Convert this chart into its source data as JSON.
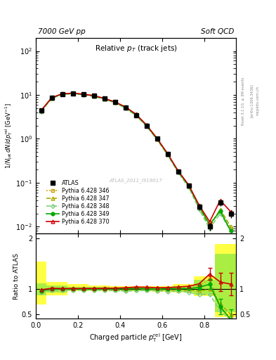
{
  "title_left": "7000 GeV pp",
  "title_right": "Soft QCD",
  "main_title": "Relative $p_T$ (track jets)",
  "xlabel": "Charged particle $p_{\\mathrm{T}}^{\\mathrm{rel}}$ [GeV]",
  "ylabel_main": "$1/N_{\\mathrm{jet}}\\,dN/dp_{\\mathrm{T}}^{\\mathrm{rel}}$ [GeV$^{-1}$]",
  "ylabel_ratio": "Ratio to ATLAS",
  "watermark": "ATLAS_2011_I919017",
  "x_data": [
    0.025,
    0.075,
    0.125,
    0.175,
    0.225,
    0.275,
    0.325,
    0.375,
    0.425,
    0.475,
    0.525,
    0.575,
    0.625,
    0.675,
    0.725,
    0.775,
    0.825,
    0.875,
    0.925
  ],
  "atlas_y": [
    4.5,
    8.5,
    10.5,
    10.8,
    10.3,
    9.5,
    8.2,
    6.8,
    5.2,
    3.5,
    2.0,
    1.0,
    0.45,
    0.18,
    0.085,
    0.028,
    0.01,
    0.035,
    0.02
  ],
  "atlas_yerr": [
    0.3,
    0.4,
    0.5,
    0.5,
    0.5,
    0.45,
    0.4,
    0.35,
    0.28,
    0.2,
    0.12,
    0.06,
    0.03,
    0.015,
    0.008,
    0.004,
    0.002,
    0.005,
    0.004
  ],
  "py346_y": [
    4.4,
    8.6,
    10.6,
    10.9,
    10.4,
    9.6,
    8.3,
    6.9,
    5.3,
    3.6,
    2.05,
    1.02,
    0.46,
    0.185,
    0.088,
    0.03,
    0.012,
    0.022,
    0.009
  ],
  "py347_y": [
    4.3,
    8.4,
    10.4,
    10.7,
    10.2,
    9.4,
    8.1,
    6.7,
    5.1,
    3.45,
    1.98,
    0.98,
    0.44,
    0.177,
    0.083,
    0.027,
    0.01,
    0.025,
    0.01
  ],
  "py348_y": [
    4.2,
    8.3,
    10.3,
    10.6,
    10.1,
    9.3,
    8.0,
    6.6,
    5.0,
    3.4,
    1.95,
    0.97,
    0.43,
    0.173,
    0.08,
    0.025,
    0.009,
    0.02,
    0.008
  ],
  "py349_y": [
    4.35,
    8.55,
    10.55,
    10.85,
    10.35,
    9.55,
    8.25,
    6.85,
    5.25,
    3.55,
    2.02,
    1.0,
    0.455,
    0.182,
    0.086,
    0.029,
    0.011,
    0.023,
    0.008
  ],
  "py370_y": [
    4.45,
    8.65,
    10.65,
    10.95,
    10.45,
    9.65,
    8.35,
    6.95,
    5.35,
    3.65,
    2.08,
    1.03,
    0.465,
    0.188,
    0.09,
    0.031,
    0.013,
    0.04,
    0.022
  ],
  "ratio_346": [
    0.978,
    1.012,
    1.01,
    1.009,
    1.01,
    1.011,
    1.012,
    1.015,
    1.019,
    1.029,
    1.025,
    1.02,
    1.022,
    1.028,
    1.035,
    1.071,
    1.2,
    0.629,
    0.45
  ],
  "ratio_347": [
    0.956,
    0.988,
    0.99,
    0.991,
    0.99,
    0.989,
    0.988,
    0.985,
    0.981,
    0.986,
    0.99,
    0.98,
    0.978,
    0.983,
    0.976,
    0.964,
    1.0,
    0.714,
    0.5
  ],
  "ratio_348": [
    0.933,
    0.976,
    0.981,
    0.981,
    0.981,
    0.979,
    0.976,
    0.971,
    0.962,
    0.971,
    0.975,
    0.97,
    0.956,
    0.961,
    0.941,
    0.893,
    0.9,
    0.571,
    0.4
  ],
  "ratio_349": [
    0.967,
    1.006,
    1.005,
    1.005,
    1.005,
    1.005,
    1.006,
    1.007,
    1.01,
    1.014,
    1.01,
    1.0,
    1.011,
    1.011,
    1.012,
    1.036,
    1.1,
    0.657,
    0.4
  ],
  "ratio_370": [
    0.989,
    1.018,
    1.014,
    1.014,
    1.015,
    1.016,
    1.018,
    1.022,
    1.029,
    1.043,
    1.04,
    1.03,
    1.033,
    1.044,
    1.059,
    1.107,
    1.3,
    1.143,
    1.1
  ],
  "ratio_370_err": [
    0.0,
    0.0,
    0.0,
    0.0,
    0.0,
    0.0,
    0.0,
    0.0,
    0.0,
    0.0,
    0.0,
    0.0,
    0.0,
    0.0,
    0.0,
    0.0,
    0.12,
    0.18,
    0.22
  ],
  "ratio_349_err": [
    0.0,
    0.0,
    0.0,
    0.0,
    0.0,
    0.0,
    0.0,
    0.0,
    0.0,
    0.0,
    0.0,
    0.0,
    0.0,
    0.0,
    0.0,
    0.05,
    0.1,
    0.15,
    0.2
  ],
  "band_x_edges": [
    0.0,
    0.05,
    0.15,
    0.25,
    0.35,
    0.45,
    0.55,
    0.65,
    0.75,
    0.85,
    0.95
  ],
  "band_yellow_lo": [
    0.7,
    0.88,
    0.97,
    0.97,
    0.96,
    0.96,
    0.95,
    0.93,
    0.87,
    0.45
  ],
  "band_yellow_hi": [
    1.55,
    1.15,
    1.1,
    1.08,
    1.06,
    1.06,
    1.06,
    1.1,
    1.25,
    1.9
  ],
  "band_green_lo": [
    0.88,
    0.93,
    0.98,
    0.98,
    0.97,
    0.97,
    0.96,
    0.95,
    0.9,
    0.55
  ],
  "band_green_hi": [
    1.12,
    1.08,
    1.05,
    1.04,
    1.03,
    1.03,
    1.03,
    1.06,
    1.18,
    1.7
  ],
  "color_346": "#c8a000",
  "color_347": "#aaaa00",
  "color_348": "#80d080",
  "color_349": "#00aa00",
  "color_370": "#cc0000",
  "color_atlas": "#000000",
  "ylim_main": [
    0.007,
    200
  ],
  "ylim_ratio": [
    0.42,
    2.1
  ],
  "xlim": [
    0.0,
    0.95
  ]
}
